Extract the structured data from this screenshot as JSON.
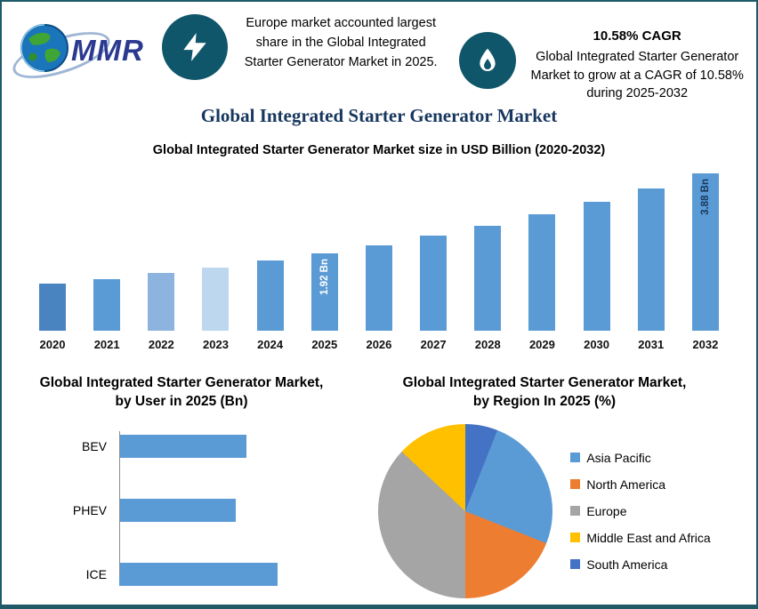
{
  "page": {
    "border_color": "#1E5A68",
    "icon_circle_color": "#10566A"
  },
  "header": {
    "logo_text": "MMR",
    "europe_note": "Europe market accounted largest share in the Global Integrated Starter Generator Market in 2025.",
    "cagr_heading": "10.58% CAGR",
    "cagr_note": "Global Integrated Starter Generator Market to grow at a CAGR of 10.58% during 2025-2032"
  },
  "main_title": "Global Integrated Starter Generator Market",
  "chart_data": [
    {
      "type": "bar",
      "title": "Global Integrated Starter Generator Market size in USD Billion (2020-2032)",
      "ylabel": "USD Billion",
      "categories": [
        "2020",
        "2021",
        "2022",
        "2023",
        "2024",
        "2025",
        "2026",
        "2027",
        "2028",
        "2029",
        "2030",
        "2031",
        "2032"
      ],
      "values": [
        1.16,
        1.28,
        1.42,
        1.57,
        1.74,
        1.92,
        2.12,
        2.35,
        2.6,
        2.87,
        3.18,
        3.51,
        3.88
      ],
      "ylim": [
        0,
        4.0
      ],
      "grid": false,
      "default_color": "#5B9BD5",
      "bar_colors": [
        "#4A84C0",
        "#5B9BD5",
        "#8DB4DE",
        "#BDD7EE"
      ],
      "bar_labels": {
        "2025": "1.92 Bn",
        "2032": "3.88 Bn"
      },
      "bar_label_colors": {
        "2025": "#FFFFFF",
        "2032": "#17375E"
      }
    },
    {
      "type": "bar",
      "orientation": "horizontal",
      "title": "Global Integrated Starter Generator Market, by User in 2025 (Bn)",
      "categories": [
        "BEV",
        "PHEV",
        "ICE"
      ],
      "values": [
        0.62,
        0.57,
        0.77
      ],
      "xlim": [
        0,
        0.85
      ],
      "color": "#5B9BD5"
    },
    {
      "type": "pie",
      "title": "Global Integrated Starter Generator Market, by Region In 2025 (%)",
      "slices_clockwise_from_top": [
        {
          "label": "South America",
          "value": 6,
          "color": "#4472C4"
        },
        {
          "label": "Asia Pacific",
          "value": 25,
          "color": "#5B9BD5"
        },
        {
          "label": "North America",
          "value": 19,
          "color": "#ED7D31"
        },
        {
          "label": "Europe",
          "value": 37,
          "color": "#A5A5A5"
        },
        {
          "label": "Middle East and Africa",
          "value": 13,
          "color": "#FFC000"
        }
      ],
      "legend_position": "right",
      "legend": [
        {
          "label": "Asia Pacific",
          "color": "#5B9BD5"
        },
        {
          "label": "North America",
          "color": "#ED7D31"
        },
        {
          "label": "Europe",
          "color": "#A5A5A5"
        },
        {
          "label": "Middle East and Africa",
          "color": "#FFC000"
        },
        {
          "label": "South America",
          "color": "#4472C4"
        }
      ]
    }
  ]
}
